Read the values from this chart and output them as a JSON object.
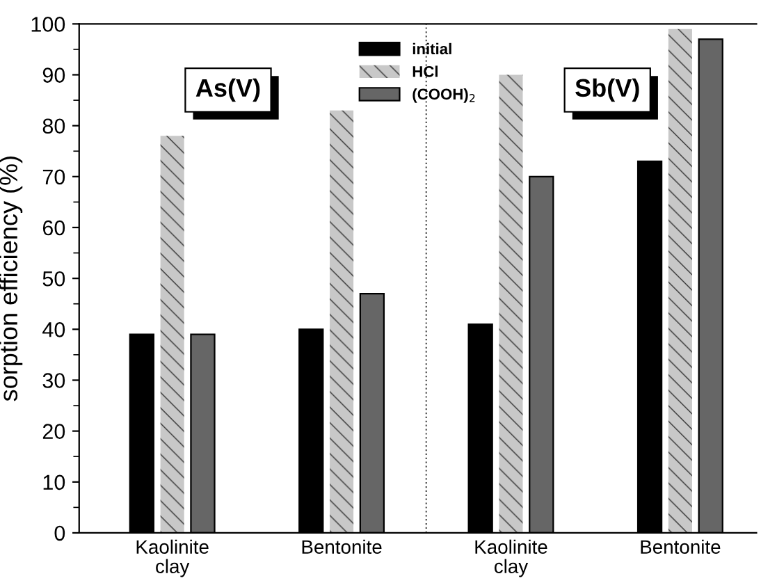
{
  "chart_data": {
    "type": "bar",
    "ylabel": "sorption efficiency (%)",
    "categories": [
      "Kaolinite\nclay",
      "Bentonite",
      "Kaolinite\nclay",
      "Bentonite"
    ],
    "series": [
      {
        "name": "initial",
        "color": "#000000",
        "values": [
          39,
          40,
          41,
          73
        ]
      },
      {
        "name": "HCl",
        "color": "#c8c8c8",
        "values": [
          78,
          83,
          90,
          99
        ]
      },
      {
        "name": "(COOH)$_{2}$",
        "color": "#666666",
        "values": [
          39,
          47,
          70,
          97
        ]
      }
    ],
    "ylim": [
      0,
      100
    ],
    "yticks": [
      0,
      10,
      20,
      30,
      40,
      50,
      60,
      70,
      80,
      90,
      100
    ],
    "annotations": [
      "As(V)",
      "Sb(V)"
    ],
    "legend": "top",
    "grid": false
  }
}
